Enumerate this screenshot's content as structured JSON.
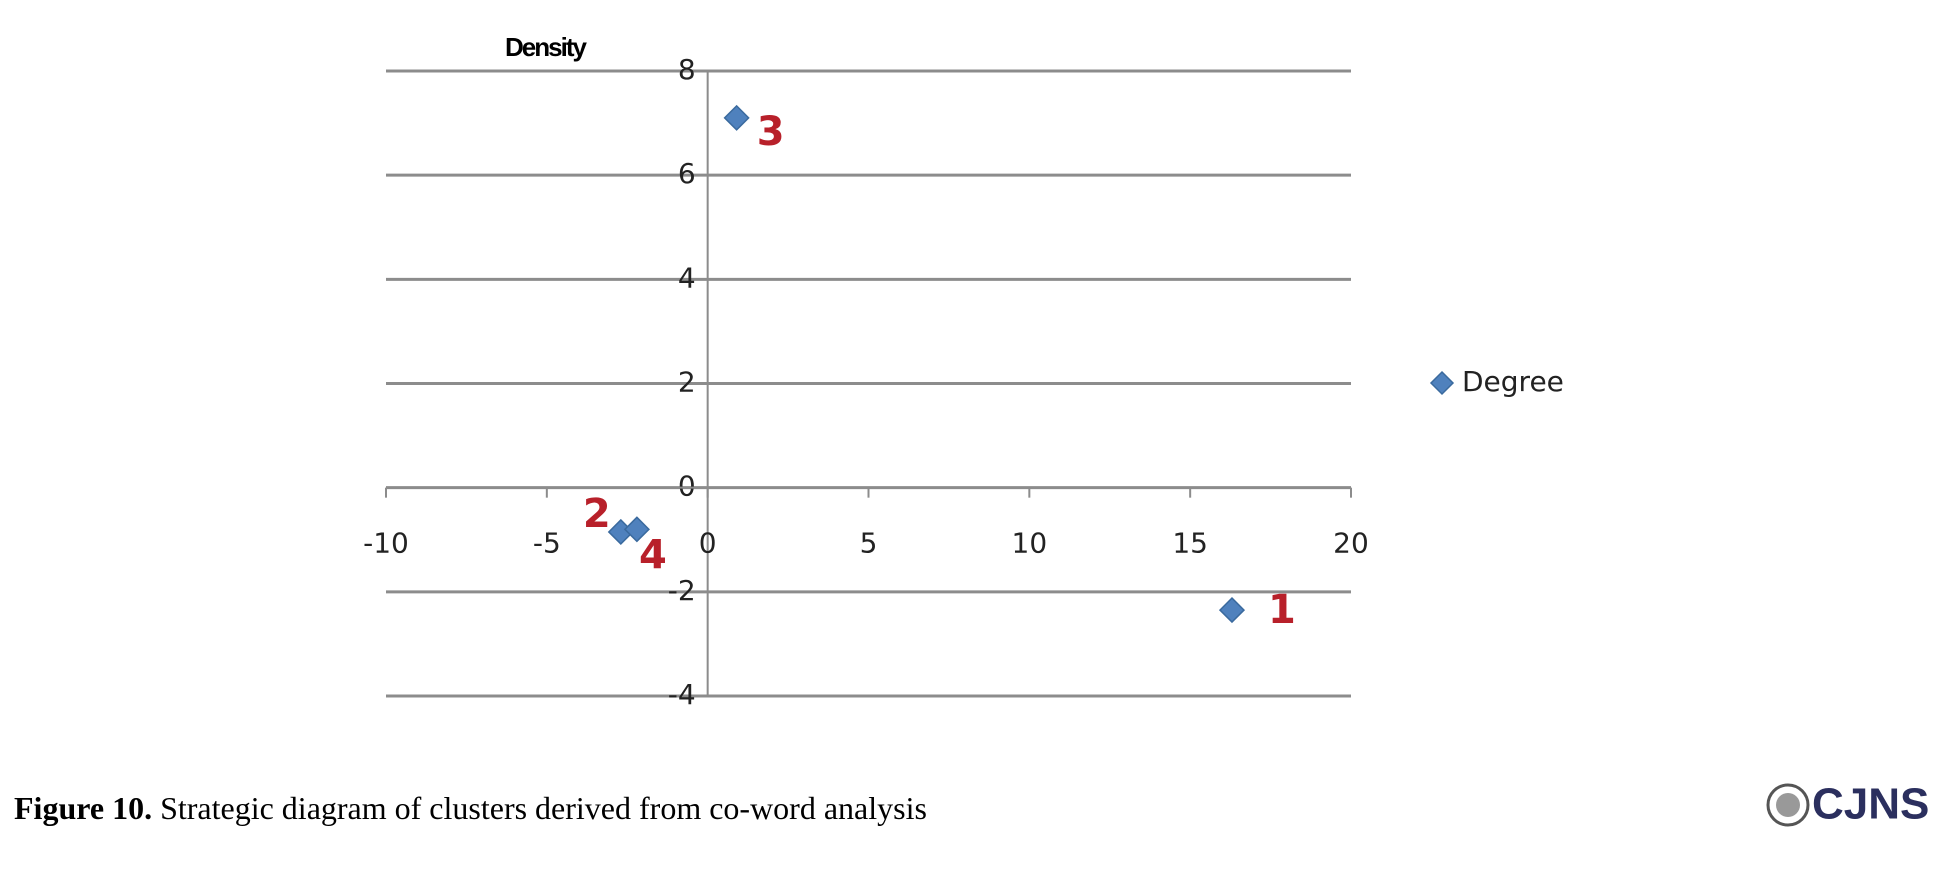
{
  "chart_data": {
    "type": "scatter",
    "y_label": "Density",
    "series": [
      {
        "name": "Degree",
        "color": "#4f81bd",
        "x": [
          16.3,
          -2.7,
          0.9,
          -2.2
        ],
        "values": [
          -2.35,
          -0.85,
          7.1,
          -0.8
        ]
      }
    ],
    "point_labels": [
      "1",
      "2",
      "3",
      "4"
    ],
    "xlim": [
      -10,
      20
    ],
    "xticks": [
      -10,
      -5,
      0,
      5,
      10,
      15,
      20
    ],
    "ylim": [
      -4,
      8
    ],
    "yticks": [
      -4,
      -2,
      0,
      2,
      4,
      6,
      8
    ],
    "grid": true,
    "legend": "right"
  },
  "caption": {
    "label": "Figure 10.",
    "text": "Strategic diagram of clusters derived from co-word analysis"
  },
  "logo": "CJNS"
}
